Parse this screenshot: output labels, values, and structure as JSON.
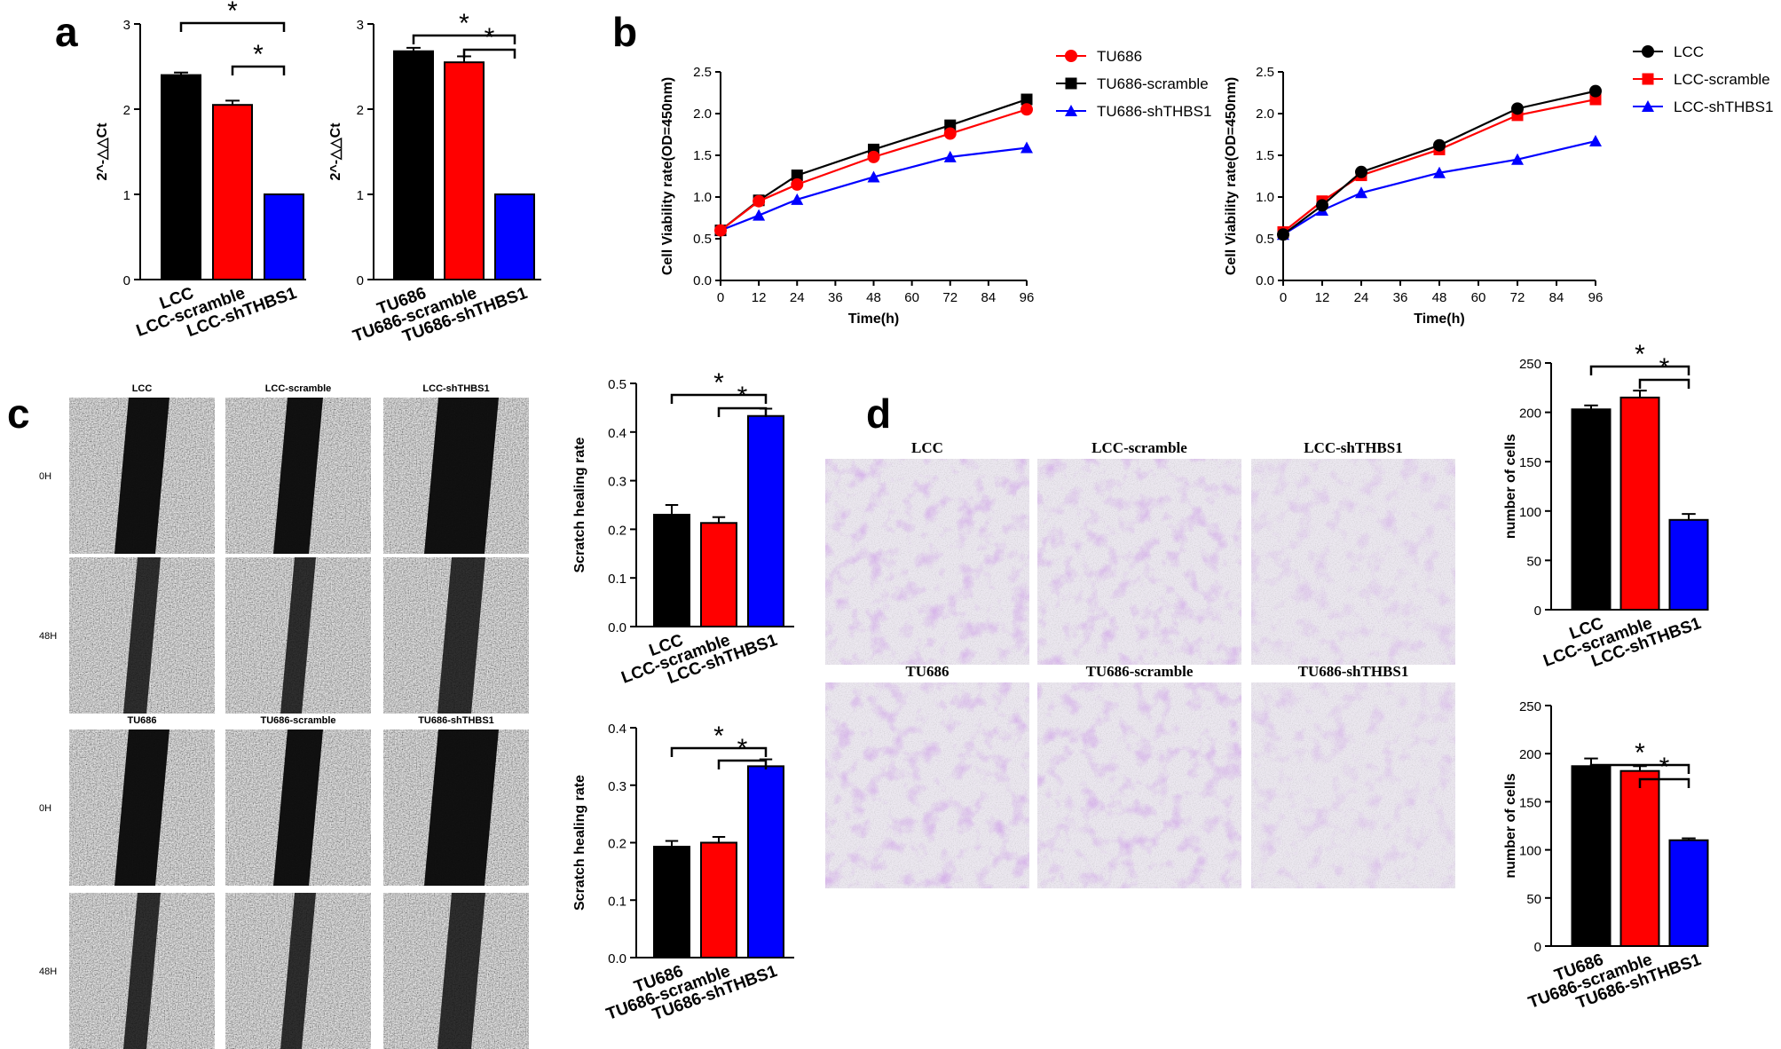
{
  "panels": {
    "a": "a",
    "b": "b",
    "c": "c",
    "d": "d"
  },
  "colors": {
    "black": "#000000",
    "red": "#ff0000",
    "blue": "#0000ff",
    "purple": "#9b4fc8"
  },
  "photos": {
    "wound_columns": [
      "LCC",
      "LCC-scramble",
      "LCC-shTHBS1"
    ],
    "wound_columns_tu": [
      "TU686",
      "TU686-scramble",
      "TU686-shTHBS1"
    ],
    "row_labels": [
      "0H",
      "48H",
      "0H",
      "48H"
    ],
    "transwell_labels_lcc": [
      "LCC",
      "LCC-scramble",
      "LCC-shTHBS1"
    ],
    "transwell_labels_tu": [
      "TU686",
      "TU686-scramble",
      "TU686-shTHBS1"
    ]
  },
  "chart_data": [
    {
      "id": "a1",
      "type": "bar",
      "categories": [
        "LCC",
        "LCC-scramble",
        "LCC-shTHBS1"
      ],
      "values": [
        2.4,
        2.05,
        1.0
      ],
      "errors": [
        0.03,
        0.05,
        0.0
      ],
      "colors": [
        "#000000",
        "#ff0000",
        "#0000ff"
      ],
      "ylabel": "2^-△△Ct",
      "ylim": [
        0,
        3
      ],
      "yticks": [
        "0",
        "1",
        "2",
        "3"
      ],
      "significance": [
        "*",
        "*"
      ]
    },
    {
      "id": "a2",
      "type": "bar",
      "categories": [
        "TU686",
        "TU686-scramble",
        "TU686-shTHBS1"
      ],
      "values": [
        2.68,
        2.55,
        1.0
      ],
      "errors": [
        0.04,
        0.07,
        0.0
      ],
      "colors": [
        "#000000",
        "#ff0000",
        "#0000ff"
      ],
      "ylabel": "2^-△△Ct",
      "ylim": [
        0,
        3
      ],
      "yticks": [
        "0",
        "1",
        "2",
        "3"
      ],
      "significance": [
        "*",
        "*"
      ]
    },
    {
      "id": "b1",
      "type": "line",
      "x": [
        0,
        12,
        24,
        48,
        72,
        96
      ],
      "xticks": [
        "0",
        "12",
        "24",
        "36",
        "48",
        "60",
        "72",
        "84",
        "96"
      ],
      "series": [
        {
          "name": "TU686",
          "values": [
            0.6,
            0.95,
            1.15,
            1.48,
            1.76,
            2.05
          ]
        },
        {
          "name": "TU686-scramble",
          "values": [
            0.6,
            0.96,
            1.26,
            1.57,
            1.86,
            2.17
          ]
        },
        {
          "name": "TU686-shTHBS1",
          "values": [
            0.6,
            0.78,
            0.97,
            1.24,
            1.48,
            1.59
          ]
        }
      ],
      "xlabel": "Time(h)",
      "ylabel": "Cell Viability rate(OD=450nm)",
      "ylim": [
        0,
        2.5
      ],
      "yticks": [
        "0.0",
        "0.5",
        "1.0",
        "1.5",
        "2.0",
        "2.5"
      ],
      "legend": "top-right"
    },
    {
      "id": "b2",
      "type": "line",
      "x": [
        0,
        12,
        24,
        48,
        72,
        96
      ],
      "xticks": [
        "0",
        "12",
        "24",
        "36",
        "48",
        "60",
        "72",
        "84",
        "96"
      ],
      "series": [
        {
          "name": "LCC",
          "values": [
            0.55,
            0.9,
            1.3,
            1.62,
            2.06,
            2.27
          ]
        },
        {
          "name": "LCC-scramble",
          "values": [
            0.58,
            0.95,
            1.26,
            1.57,
            1.98,
            2.17
          ]
        },
        {
          "name": "LCC-shTHBS1",
          "values": [
            0.55,
            0.84,
            1.05,
            1.29,
            1.45,
            1.67
          ]
        }
      ],
      "xlabel": "Time(h)",
      "ylabel": "Cell Viability rate(OD=450nm)",
      "ylim": [
        0,
        2.5
      ],
      "yticks": [
        "0.0",
        "0.5",
        "1.0",
        "1.5",
        "2.0",
        "2.5"
      ],
      "legend": "top-right"
    },
    {
      "id": "c1",
      "type": "bar",
      "categories": [
        "LCC",
        "LCC-scramble",
        "LCC-shTHBS1"
      ],
      "values": [
        0.23,
        0.213,
        0.433
      ],
      "errors": [
        0.02,
        0.012,
        0.015
      ],
      "colors": [
        "#000000",
        "#ff0000",
        "#0000ff"
      ],
      "ylabel": "Scratch healing rate",
      "ylim": [
        0,
        0.5
      ],
      "yticks": [
        "0.0",
        "0.1",
        "0.2",
        "0.3",
        "0.4",
        "0.5"
      ],
      "significance": [
        "*",
        "*"
      ]
    },
    {
      "id": "c2",
      "type": "bar",
      "categories": [
        "TU686",
        "TU686-scramble",
        "TU686-shTHBS1"
      ],
      "values": [
        0.193,
        0.2,
        0.333
      ],
      "errors": [
        0.01,
        0.01,
        0.012
      ],
      "colors": [
        "#000000",
        "#ff0000",
        "#0000ff"
      ],
      "ylabel": "Scratch healing rate",
      "ylim": [
        0,
        0.4
      ],
      "yticks": [
        "0.0",
        "0.1",
        "0.2",
        "0.3",
        "0.4"
      ],
      "significance": [
        "*",
        "*"
      ]
    },
    {
      "id": "d1",
      "type": "bar",
      "categories": [
        "LCC",
        "LCC-scramble",
        "LCC-shTHBS1"
      ],
      "values": [
        203,
        215,
        91
      ],
      "errors": [
        4,
        7,
        6
      ],
      "colors": [
        "#000000",
        "#ff0000",
        "#0000ff"
      ],
      "ylabel": "number of cells",
      "ylim": [
        0,
        250
      ],
      "yticks": [
        "0",
        "50",
        "100",
        "150",
        "200",
        "250"
      ],
      "significance": [
        "*",
        "*"
      ]
    },
    {
      "id": "d2",
      "type": "bar",
      "categories": [
        "TU686",
        "TU686-scramble",
        "TU686-shTHBS1"
      ],
      "values": [
        187,
        182,
        110
      ],
      "errors": [
        8,
        5,
        2
      ],
      "colors": [
        "#000000",
        "#ff0000",
        "#0000ff"
      ],
      "ylabel": "number of cells",
      "ylim": [
        0,
        250
      ],
      "yticks": [
        "0",
        "50",
        "100",
        "150",
        "200",
        "250"
      ],
      "significance": [
        "*",
        "*"
      ]
    }
  ]
}
